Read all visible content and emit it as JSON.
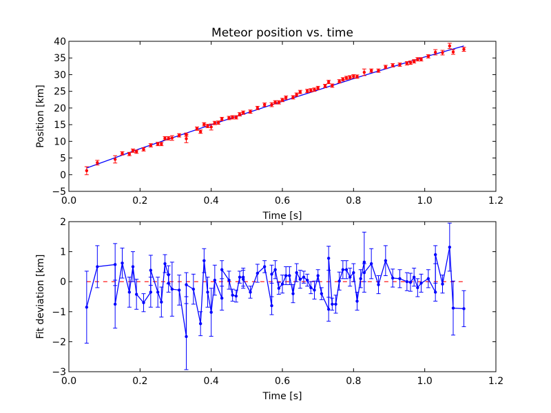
{
  "chart_data": [
    {
      "type": "scatter",
      "title": "Meteor position vs. time",
      "xlabel": "Time [s]",
      "ylabel": "Position [km]",
      "xlim": [
        0.0,
        1.2
      ],
      "ylim": [
        -5,
        40
      ],
      "x_ticks": [
        "0.0",
        "0.2",
        "0.4",
        "0.6",
        "0.8",
        "1.0",
        "1.2"
      ],
      "y_ticks": [
        "−5",
        "0",
        "5",
        "10",
        "15",
        "20",
        "25",
        "30",
        "35",
        "40"
      ],
      "grid": false,
      "colors": {
        "points": "#ff0000",
        "fit": "#0000ff"
      },
      "series": [
        {
          "kind": "errorbar-points",
          "x": [
            0.05,
            0.08,
            0.13,
            0.15,
            0.17,
            0.18,
            0.19,
            0.21,
            0.23,
            0.25,
            0.26,
            0.27,
            0.28,
            0.29,
            0.31,
            0.33,
            0.33,
            0.36,
            0.37,
            0.38,
            0.39,
            0.4,
            0.41,
            0.42,
            0.43,
            0.45,
            0.46,
            0.47,
            0.48,
            0.49,
            0.51,
            0.53,
            0.55,
            0.57,
            0.58,
            0.59,
            0.6,
            0.61,
            0.63,
            0.64,
            0.65,
            0.67,
            0.68,
            0.69,
            0.7,
            0.72,
            0.73,
            0.74,
            0.76,
            0.77,
            0.78,
            0.79,
            0.8,
            0.81,
            0.83,
            0.85,
            0.87,
            0.89,
            0.91,
            0.93,
            0.95,
            0.96,
            0.97,
            0.98,
            0.99,
            1.01,
            1.03,
            1.05,
            1.07,
            1.08,
            1.11
          ],
          "y": [
            1.2,
            3.6,
            4.6,
            6.4,
            6.2,
            7.2,
            6.9,
            7.6,
            8.8,
            9.2,
            9.2,
            10.9,
            10.9,
            11.0,
            11.8,
            10.8,
            12.0,
            13.8,
            12.9,
            15.1,
            14.6,
            14.3,
            15.5,
            15.6,
            16.7,
            17.0,
            17.2,
            17.2,
            18.1,
            18.6,
            18.9,
            20.0,
            21.0,
            21.0,
            21.7,
            21.7,
            22.4,
            23.1,
            23.2,
            24.0,
            24.8,
            25.1,
            25.3,
            25.5,
            26.0,
            26.6,
            27.8,
            26.7,
            28.0,
            28.6,
            29.0,
            29.2,
            29.5,
            29.4,
            30.7,
            31.2,
            31.2,
            32.3,
            32.8,
            33.0,
            33.4,
            33.6,
            34.0,
            34.6,
            34.6,
            35.5,
            36.7,
            36.6,
            38.6,
            36.8,
            37.6
          ],
          "err": [
            1.2,
            0.7,
            1.1,
            0.5,
            0.5,
            0.5,
            0.5,
            0.5,
            0.5,
            0.5,
            0.5,
            0.5,
            0.5,
            0.7,
            0.5,
            1.2,
            0.5,
            0.5,
            0.5,
            0.5,
            0.5,
            0.9,
            0.5,
            0.5,
            0.5,
            0.5,
            0.5,
            0.5,
            0.5,
            0.5,
            0.5,
            0.5,
            0.5,
            0.6,
            0.5,
            0.5,
            0.5,
            0.5,
            0.5,
            0.5,
            0.5,
            0.5,
            0.5,
            0.5,
            0.5,
            0.5,
            0.5,
            0.5,
            0.5,
            0.5,
            0.5,
            0.5,
            0.5,
            0.5,
            1.0,
            0.5,
            0.5,
            0.5,
            0.5,
            0.5,
            0.5,
            0.5,
            0.5,
            0.5,
            0.5,
            0.5,
            0.8,
            0.7,
            0.8,
            0.7,
            0.6
          ]
        },
        {
          "kind": "fit-line",
          "x": [
            0.05,
            0.2,
            0.4,
            0.6,
            0.8,
            1.0,
            1.11
          ],
          "y": [
            2.0,
            7.8,
            15.0,
            22.0,
            28.8,
            35.3,
            38.6
          ]
        }
      ]
    },
    {
      "type": "line",
      "title": "",
      "xlabel": "Time [s]",
      "ylabel": "Fit deviation [km]",
      "xlim": [
        0.0,
        1.2
      ],
      "ylim": [
        -3,
        2
      ],
      "x_ticks": [
        "0.0",
        "0.2",
        "0.4",
        "0.6",
        "0.8",
        "1.0",
        "1.2"
      ],
      "y_ticks": [
        "−3",
        "−2",
        "−1",
        "0",
        "1",
        "2"
      ],
      "grid": false,
      "colors": {
        "line": "#0000ff",
        "zero": "#ff0000"
      },
      "zero_line": {
        "x": [
          0.05,
          1.11
        ],
        "y": 0
      },
      "series": [
        {
          "kind": "errorbar-line",
          "x": [
            0.05,
            0.08,
            0.13,
            0.13,
            0.15,
            0.17,
            0.18,
            0.19,
            0.21,
            0.23,
            0.23,
            0.25,
            0.26,
            0.27,
            0.28,
            0.28,
            0.29,
            0.31,
            0.33,
            0.33,
            0.35,
            0.37,
            0.38,
            0.39,
            0.4,
            0.41,
            0.43,
            0.43,
            0.45,
            0.46,
            0.47,
            0.48,
            0.49,
            0.49,
            0.51,
            0.53,
            0.55,
            0.57,
            0.57,
            0.58,
            0.59,
            0.6,
            0.61,
            0.62,
            0.63,
            0.64,
            0.65,
            0.66,
            0.67,
            0.68,
            0.69,
            0.7,
            0.71,
            0.73,
            0.73,
            0.74,
            0.75,
            0.76,
            0.77,
            0.78,
            0.79,
            0.8,
            0.81,
            0.82,
            0.83,
            0.83,
            0.85,
            0.87,
            0.89,
            0.91,
            0.93,
            0.95,
            0.96,
            0.97,
            0.98,
            0.99,
            1.01,
            1.03,
            1.03,
            1.05,
            1.07,
            1.08,
            1.11
          ],
          "y": [
            -0.85,
            0.5,
            0.57,
            -0.75,
            0.62,
            -0.35,
            0.5,
            -0.42,
            -0.7,
            -0.35,
            0.38,
            -0.35,
            -0.68,
            0.6,
            0.23,
            -0.05,
            -0.25,
            -0.28,
            -1.83,
            -0.1,
            -0.25,
            -1.4,
            0.7,
            -0.35,
            -1.02,
            0.05,
            -0.55,
            0.4,
            0.05,
            -0.45,
            -0.48,
            0.15,
            0.15,
            0.08,
            -0.35,
            0.28,
            0.5,
            -0.8,
            0.25,
            0.4,
            -0.22,
            -0.08,
            0.2,
            0.2,
            -0.4,
            0.3,
            0.08,
            0.15,
            0.05,
            -0.2,
            -0.28,
            0.2,
            -0.4,
            -0.92,
            0.78,
            -0.75,
            -0.75,
            0.02,
            0.4,
            0.4,
            0.15,
            0.3,
            -0.65,
            0.1,
            0.65,
            0.3,
            0.6,
            -0.1,
            0.7,
            0.12,
            0.1,
            0.0,
            -0.02,
            0.15,
            -0.2,
            -0.05,
            0.1,
            -0.35,
            0.9,
            -0.08,
            1.15,
            -0.88,
            -0.9
          ],
          "err": [
            1.2,
            0.7,
            0.7,
            0.8,
            0.5,
            0.5,
            0.5,
            0.5,
            0.3,
            0.5,
            0.5,
            0.5,
            0.5,
            0.3,
            0.3,
            0.3,
            0.9,
            0.5,
            1.1,
            0.4,
            0.5,
            0.4,
            0.4,
            0.5,
            0.8,
            0.5,
            0.4,
            0.3,
            0.3,
            0.2,
            0.2,
            0.2,
            0.3,
            0.3,
            0.2,
            0.3,
            0.2,
            0.3,
            0.3,
            0.3,
            0.2,
            0.3,
            0.3,
            0.3,
            0.3,
            0.3,
            0.3,
            0.2,
            0.2,
            0.2,
            0.3,
            0.2,
            0.2,
            0.4,
            0.4,
            0.2,
            0.3,
            0.3,
            0.3,
            0.3,
            0.3,
            0.3,
            0.3,
            0.3,
            1.0,
            0.3,
            0.5,
            0.3,
            0.5,
            0.3,
            0.3,
            0.3,
            0.3,
            0.3,
            0.3,
            0.3,
            0.3,
            0.3,
            0.3,
            0.3,
            0.8,
            0.9,
            0.6
          ]
        }
      ]
    }
  ]
}
